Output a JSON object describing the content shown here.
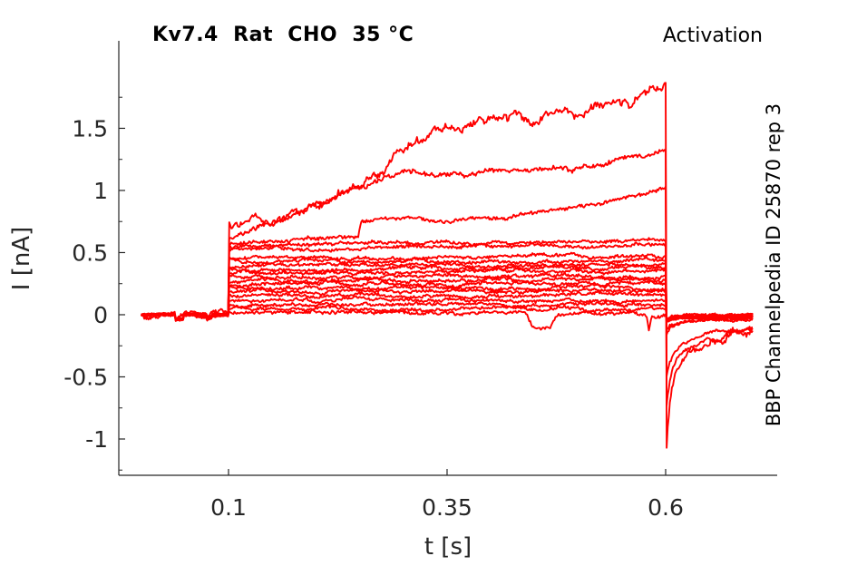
{
  "header": {
    "title": "Kv7.4  Rat  CHO  35 °C",
    "corner_label": "Activation"
  },
  "side_label": "BBP Channelpedia ID 25870 rep 3",
  "chart_data": {
    "type": "line",
    "title": "Kv7.4 Rat CHO 35 °C",
    "subtitle": "Activation",
    "xlabel": "t [s]",
    "ylabel": "I [nA]",
    "trace_color": "#ff0000",
    "axis_color": "#262626",
    "grid": false,
    "legend": false,
    "axis_range": {
      "x": [
        -0.0255,
        0.7276
      ],
      "y": [
        -1.292,
        2.204
      ]
    },
    "xticks": [
      {
        "v": 0.1,
        "label": "0.1"
      },
      {
        "v": 0.35,
        "label": "0.35"
      },
      {
        "v": 0.6,
        "label": "0.6"
      }
    ],
    "yticks": [
      {
        "v": 1.5,
        "label": "1.5"
      },
      {
        "v": 1,
        "label": "1"
      },
      {
        "v": 0.5,
        "label": "0.5"
      },
      {
        "v": 0,
        "label": "0"
      },
      {
        "v": -0.5,
        "label": "-0.5"
      },
      {
        "v": -1,
        "label": "-1"
      }
    ],
    "yticks_minor": [
      1.75,
      1.25,
      0.75,
      0.25,
      -0.25,
      -0.75,
      -1.25
    ],
    "protocol": {
      "baseline_nA": 0,
      "step_start_s": 0.1,
      "step_end_s": 0.6,
      "trace_end_s": 0.7
    },
    "baseline_artifacts": [
      {
        "t0": 0.039,
        "t1": 0.049,
        "amp": -0.04
      },
      {
        "t0": 0.075,
        "t1": 0.081,
        "amp": -0.018
      }
    ],
    "sweeps": [
      {
        "name": "sweep-01",
        "wander": 0.07,
        "jitter": 0.02,
        "kp": [
          [
            0.1,
            0.7
          ],
          [
            0.13,
            0.75
          ],
          [
            0.16,
            0.79
          ],
          [
            0.19,
            0.84
          ],
          [
            0.22,
            0.92
          ],
          [
            0.25,
            1.03
          ],
          [
            0.28,
            1.22
          ],
          [
            0.31,
            1.35
          ],
          [
            0.34,
            1.48
          ],
          [
            0.37,
            1.5
          ],
          [
            0.4,
            1.55
          ],
          [
            0.43,
            1.6
          ],
          [
            0.45,
            1.55
          ],
          [
            0.48,
            1.68
          ],
          [
            0.5,
            1.63
          ],
          [
            0.52,
            1.74
          ],
          [
            0.54,
            1.7
          ],
          [
            0.56,
            1.67
          ],
          [
            0.575,
            1.78
          ],
          [
            0.59,
            1.82
          ],
          [
            0.6,
            1.85
          ]
        ],
        "tail": [
          [
            0.6005,
            -1.21
          ],
          [
            0.602,
            -1.0
          ],
          [
            0.604,
            -0.8
          ],
          [
            0.607,
            -0.62
          ],
          [
            0.611,
            -0.5
          ],
          [
            0.617,
            -0.4
          ],
          [
            0.625,
            -0.33
          ],
          [
            0.635,
            -0.28
          ],
          [
            0.648,
            -0.25
          ],
          [
            0.66,
            -0.2
          ],
          [
            0.668,
            -0.22
          ],
          [
            0.675,
            -0.13
          ],
          [
            0.685,
            -0.11
          ],
          [
            0.7,
            -0.1
          ]
        ]
      },
      {
        "name": "sweep-02",
        "wander": 0.035,
        "jitter": 0.014,
        "kp": [
          [
            0.1,
            0.63
          ],
          [
            0.14,
            0.72
          ],
          [
            0.18,
            0.82
          ],
          [
            0.22,
            0.95
          ],
          [
            0.26,
            1.06
          ],
          [
            0.3,
            1.11
          ],
          [
            0.34,
            1.12
          ],
          [
            0.38,
            1.14
          ],
          [
            0.42,
            1.16
          ],
          [
            0.46,
            1.18
          ],
          [
            0.5,
            1.2
          ],
          [
            0.54,
            1.24
          ],
          [
            0.57,
            1.27
          ],
          [
            0.59,
            1.3
          ],
          [
            0.6,
            1.33
          ]
        ],
        "tail": [
          [
            0.6005,
            -0.78
          ],
          [
            0.603,
            -0.6
          ],
          [
            0.607,
            -0.46
          ],
          [
            0.613,
            -0.36
          ],
          [
            0.622,
            -0.28
          ],
          [
            0.635,
            -0.23
          ],
          [
            0.65,
            -0.18
          ],
          [
            0.662,
            -0.21
          ],
          [
            0.672,
            -0.13
          ],
          [
            0.685,
            -0.16
          ],
          [
            0.7,
            -0.12
          ]
        ]
      },
      {
        "name": "sweep-03",
        "wander": 0.02,
        "jitter": 0.011,
        "kp": [
          [
            0.1,
            0.57
          ],
          [
            0.15,
            0.59
          ],
          [
            0.2,
            0.6
          ],
          [
            0.248,
            0.62
          ],
          [
            0.252,
            0.75
          ],
          [
            0.3,
            0.77
          ],
          [
            0.36,
            0.77
          ],
          [
            0.42,
            0.78
          ],
          [
            0.46,
            0.84
          ],
          [
            0.5,
            0.87
          ],
          [
            0.53,
            0.89
          ],
          [
            0.555,
            0.94
          ],
          [
            0.58,
            0.98
          ],
          [
            0.6,
            1.02
          ]
        ],
        "tail": [
          [
            0.6005,
            -0.52
          ],
          [
            0.604,
            -0.4
          ],
          [
            0.609,
            -0.31
          ],
          [
            0.617,
            -0.24
          ],
          [
            0.63,
            -0.19
          ],
          [
            0.645,
            -0.15
          ],
          [
            0.66,
            -0.13
          ],
          [
            0.675,
            -0.14
          ],
          [
            0.69,
            -0.11
          ],
          [
            0.7,
            -0.1
          ]
        ]
      },
      {
        "name": "sweep-04",
        "wander": 0.018,
        "jitter": 0.01,
        "kp": [
          [
            0.1,
            0.555
          ],
          [
            0.2,
            0.565
          ],
          [
            0.3,
            0.575
          ],
          [
            0.4,
            0.58
          ],
          [
            0.5,
            0.585
          ],
          [
            0.6,
            0.595
          ]
        ],
        "tail": [
          [
            0.6005,
            -0.17
          ],
          [
            0.605,
            -0.1
          ],
          [
            0.615,
            -0.07
          ],
          [
            0.63,
            -0.05
          ],
          [
            0.66,
            -0.045
          ],
          [
            0.7,
            -0.04
          ]
        ]
      },
      {
        "name": "sweep-05",
        "wander": 0.016,
        "jitter": 0.01,
        "kp": [
          [
            0.1,
            0.52
          ],
          [
            0.2,
            0.53
          ],
          [
            0.3,
            0.545
          ],
          [
            0.45,
            0.55
          ],
          [
            0.6,
            0.56
          ]
        ],
        "tail": [
          [
            0.6005,
            -0.13
          ],
          [
            0.605,
            -0.08
          ],
          [
            0.62,
            -0.055
          ],
          [
            0.65,
            -0.04
          ],
          [
            0.7,
            -0.035
          ]
        ]
      },
      {
        "name": "sweep-06",
        "wander": 0.02,
        "jitter": 0.009,
        "kp": [
          [
            0.1,
            0.455
          ],
          [
            0.35,
            0.46
          ],
          [
            0.6,
            0.465
          ]
        ],
        "tail": [
          [
            0.6005,
            -0.058
          ],
          [
            0.607,
            -0.03
          ],
          [
            0.62,
            -0.02
          ],
          [
            0.7,
            -0.015
          ]
        ]
      },
      {
        "name": "sweep-07",
        "wander": 0.02,
        "jitter": 0.009,
        "kp": [
          [
            0.1,
            0.425
          ],
          [
            0.35,
            0.43
          ],
          [
            0.6,
            0.435
          ]
        ],
        "tail": [
          [
            0.6005,
            -0.055
          ],
          [
            0.607,
            -0.028
          ],
          [
            0.62,
            -0.02
          ],
          [
            0.7,
            -0.015
          ]
        ]
      },
      {
        "name": "sweep-08",
        "wander": 0.02,
        "jitter": 0.009,
        "kp": [
          [
            0.1,
            0.395
          ],
          [
            0.35,
            0.4
          ],
          [
            0.6,
            0.405
          ]
        ],
        "tail": [
          [
            0.6005,
            -0.052
          ],
          [
            0.607,
            -0.027
          ],
          [
            0.62,
            -0.019
          ],
          [
            0.7,
            -0.014
          ]
        ]
      },
      {
        "name": "sweep-09",
        "wander": 0.02,
        "jitter": 0.009,
        "kp": [
          [
            0.1,
            0.365
          ],
          [
            0.35,
            0.37
          ],
          [
            0.6,
            0.375
          ]
        ],
        "tail": [
          [
            0.6005,
            -0.049
          ],
          [
            0.607,
            -0.026
          ],
          [
            0.62,
            -0.018
          ],
          [
            0.7,
            -0.014
          ]
        ]
      },
      {
        "name": "sweep-10",
        "wander": 0.02,
        "jitter": 0.009,
        "kp": [
          [
            0.1,
            0.335
          ],
          [
            0.35,
            0.34
          ],
          [
            0.6,
            0.345
          ]
        ],
        "tail": [
          [
            0.6005,
            -0.047
          ],
          [
            0.607,
            -0.025
          ],
          [
            0.62,
            -0.018
          ],
          [
            0.7,
            -0.013
          ]
        ]
      },
      {
        "name": "sweep-11",
        "wander": 0.02,
        "jitter": 0.009,
        "kp": [
          [
            0.1,
            0.305
          ],
          [
            0.35,
            0.31
          ],
          [
            0.6,
            0.315
          ]
        ],
        "tail": [
          [
            0.6005,
            -0.044
          ],
          [
            0.607,
            -0.024
          ],
          [
            0.62,
            -0.017
          ],
          [
            0.7,
            -0.013
          ]
        ]
      },
      {
        "name": "sweep-12",
        "wander": 0.02,
        "jitter": 0.009,
        "kp": [
          [
            0.1,
            0.275
          ],
          [
            0.35,
            0.28
          ],
          [
            0.6,
            0.285
          ]
        ],
        "tail": [
          [
            0.6005,
            -0.042
          ],
          [
            0.607,
            -0.023
          ],
          [
            0.62,
            -0.017
          ],
          [
            0.7,
            -0.012
          ]
        ]
      },
      {
        "name": "sweep-13",
        "wander": 0.02,
        "jitter": 0.009,
        "kp": [
          [
            0.1,
            0.245
          ],
          [
            0.35,
            0.25
          ],
          [
            0.6,
            0.255
          ]
        ],
        "tail": [
          [
            0.6005,
            -0.04
          ],
          [
            0.607,
            -0.022
          ],
          [
            0.62,
            -0.016
          ],
          [
            0.7,
            -0.012
          ]
        ]
      },
      {
        "name": "sweep-14",
        "wander": 0.02,
        "jitter": 0.009,
        "kp": [
          [
            0.1,
            0.215
          ],
          [
            0.35,
            0.22
          ],
          [
            0.6,
            0.225
          ]
        ],
        "tail": [
          [
            0.6005,
            -0.037
          ],
          [
            0.607,
            -0.021
          ],
          [
            0.62,
            -0.016
          ],
          [
            0.7,
            -0.011
          ]
        ]
      },
      {
        "name": "sweep-15",
        "wander": 0.02,
        "jitter": 0.009,
        "kp": [
          [
            0.1,
            0.185
          ],
          [
            0.35,
            0.19
          ],
          [
            0.6,
            0.195
          ]
        ],
        "tail": [
          [
            0.6005,
            -0.035
          ],
          [
            0.607,
            -0.02
          ],
          [
            0.62,
            -0.015
          ],
          [
            0.7,
            -0.011
          ]
        ]
      },
      {
        "name": "sweep-16",
        "wander": 0.02,
        "jitter": 0.009,
        "kp": [
          [
            0.1,
            0.15
          ],
          [
            0.35,
            0.155
          ],
          [
            0.6,
            0.16
          ]
        ],
        "tail": [
          [
            0.6005,
            -0.032
          ],
          [
            0.607,
            -0.019
          ],
          [
            0.62,
            -0.015
          ],
          [
            0.7,
            -0.01
          ]
        ]
      },
      {
        "name": "sweep-17",
        "wander": 0.02,
        "jitter": 0.009,
        "kp": [
          [
            0.1,
            0.115
          ],
          [
            0.35,
            0.12
          ],
          [
            0.6,
            0.125
          ]
        ],
        "tail": [
          [
            0.6005,
            -0.03
          ],
          [
            0.607,
            -0.018
          ],
          [
            0.62,
            -0.014
          ],
          [
            0.7,
            -0.01
          ]
        ]
      },
      {
        "name": "sweep-18",
        "wander": 0.02,
        "jitter": 0.009,
        "kp": [
          [
            0.1,
            0.08
          ],
          [
            0.35,
            0.085
          ],
          [
            0.6,
            0.09
          ]
        ],
        "tail": [
          [
            0.6005,
            -0.027
          ],
          [
            0.607,
            -0.017
          ],
          [
            0.62,
            -0.013
          ],
          [
            0.7,
            -0.009
          ]
        ]
      },
      {
        "name": "sweep-19",
        "wander": 0.02,
        "jitter": 0.009,
        "kp": [
          [
            0.1,
            0.048
          ],
          [
            0.35,
            0.05
          ],
          [
            0.6,
            0.055
          ]
        ],
        "tail": [
          [
            0.6005,
            -0.024
          ],
          [
            0.607,
            -0.016
          ],
          [
            0.62,
            -0.013
          ],
          [
            0.7,
            -0.009
          ]
        ]
      },
      {
        "name": "sweep-20",
        "wander": 0.02,
        "jitter": 0.01,
        "kp": [
          [
            0.1,
            0.02
          ],
          [
            0.2,
            0.02
          ],
          [
            0.3,
            0.015
          ],
          [
            0.44,
            0.015
          ],
          [
            0.448,
            -0.11
          ],
          [
            0.458,
            -0.12
          ],
          [
            0.468,
            -0.1
          ],
          [
            0.476,
            0.0
          ],
          [
            0.52,
            0.01
          ],
          [
            0.578,
            0.005
          ],
          [
            0.581,
            -0.13
          ],
          [
            0.584,
            0.0
          ],
          [
            0.6,
            0.01
          ]
        ],
        "tail": [
          [
            0.6005,
            -0.05
          ],
          [
            0.61,
            -0.03
          ],
          [
            0.65,
            -0.02
          ],
          [
            0.7,
            -0.02
          ]
        ]
      }
    ]
  }
}
